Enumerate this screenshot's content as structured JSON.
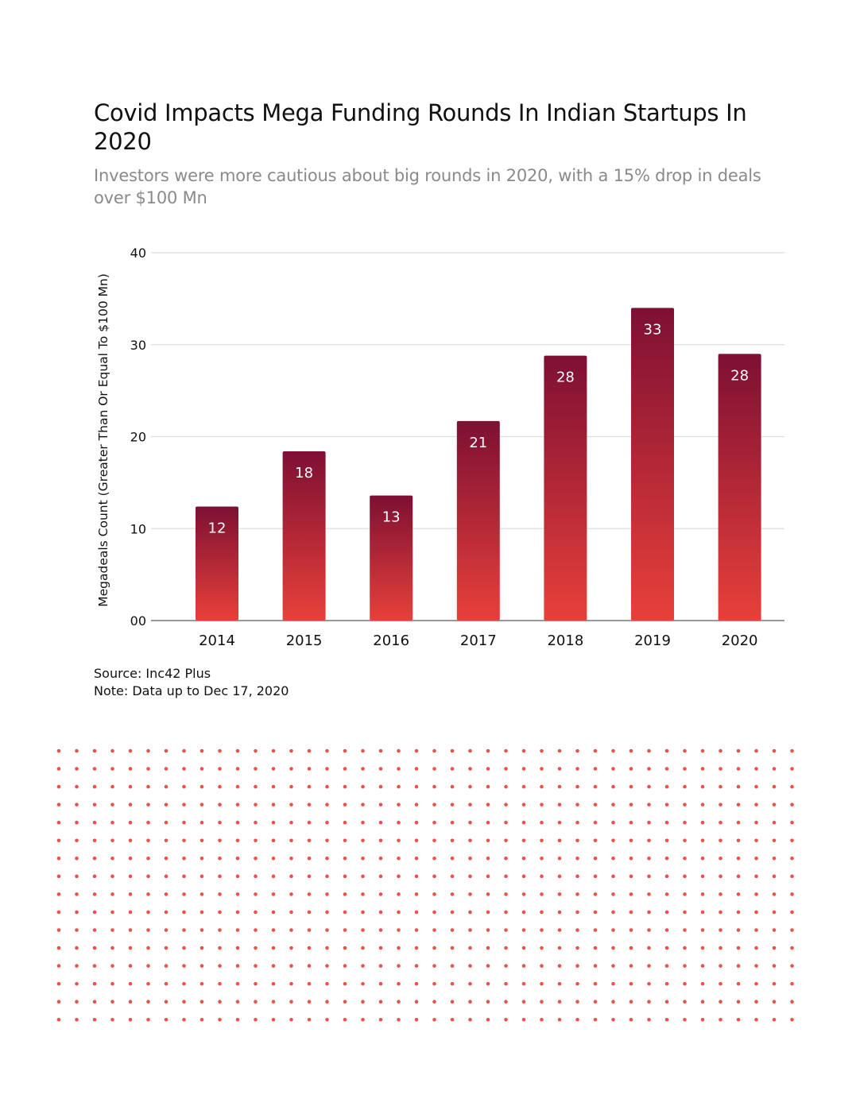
{
  "header": {
    "title": "Covid Impacts Mega Funding Rounds In Indian Startups In 2020",
    "subtitle": "Investors were more cautious about big rounds in 2020, with a 15% drop in deals over $100 Mn"
  },
  "footer": {
    "source": "Source: Inc42 Plus",
    "note": "Note: Data up to Dec 17, 2020"
  },
  "colors": {
    "bar_top": "#7d1033",
    "bar_bottom": "#e8403a",
    "dot": "#f0504a",
    "grid": "#dddddd",
    "axis": "#999999"
  },
  "chart_data": {
    "type": "bar",
    "title": "Covid Impacts Mega Funding Rounds In Indian Startups In 2020",
    "xlabel": "",
    "ylabel": "Megadeals Count (Greater Than Or Equal To $100 Mn)",
    "categories": [
      "2014",
      "2015",
      "2016",
      "2017",
      "2018",
      "2019",
      "2020"
    ],
    "values": [
      12,
      18,
      13,
      21,
      28,
      33,
      28
    ],
    "bar_heights_approx": [
      12.4,
      18.4,
      13.6,
      21.7,
      28.8,
      34.0,
      29.0
    ],
    "ylim": [
      0,
      40
    ],
    "yticks": [
      0,
      10,
      20,
      30,
      40
    ],
    "ytick_labels": [
      "00",
      "10",
      "20",
      "30",
      "40"
    ],
    "grid": true,
    "legend": "none"
  }
}
